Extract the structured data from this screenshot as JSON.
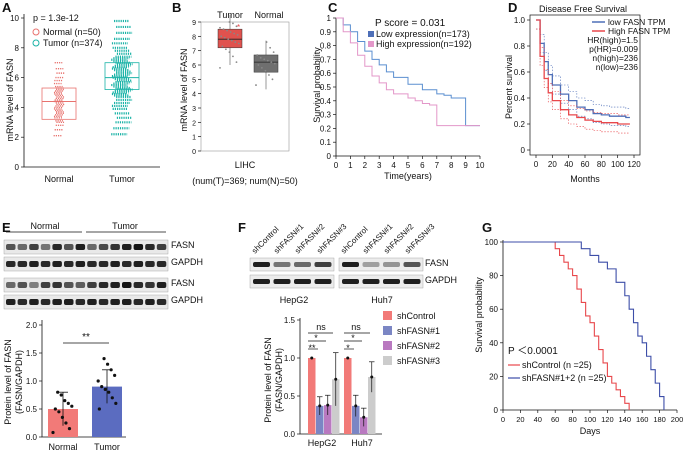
{
  "colors": {
    "normal": "#e8726e",
    "tumor": "#1bb3a7",
    "blue": "#4e6fb8",
    "red": "#e8474b",
    "lightred": "#f27a78",
    "purple": "#9b59a6",
    "grey": "#bdbdbd",
    "boxgrey": "#6f6f6f",
    "boxred": "#e0524e",
    "pink": "#e397c9",
    "lblue": "#5b8fd0"
  },
  "panels": {
    "A": {
      "letter": "A",
      "pvalue": "p = 1.3e-12",
      "legend": [
        {
          "label": "Normal (n=50)"
        },
        {
          "label": "Tumor (n=374)"
        }
      ],
      "ylabel": "mRNA level of FASN",
      "yticks": [
        "0",
        "2",
        "4",
        "6",
        "8",
        "10"
      ],
      "categories": [
        "Normal",
        "Tumor"
      ]
    },
    "B": {
      "letter": "B",
      "groups": [
        "Tumor",
        "Normal"
      ],
      "star": "*",
      "ylabel": "mRNA level of FASN",
      "yticks": [
        "0",
        "1",
        "2",
        "3",
        "4",
        "5",
        "6",
        "7",
        "8",
        "9"
      ],
      "xlabel": "LIHC",
      "subtitle": "(num(T)=369; num(N)=50)"
    },
    "C": {
      "letter": "C",
      "pscore": "P score = 0.031",
      "legend": [
        "Low expression(n=173)",
        "High expression(n=192)"
      ],
      "ylabel": "Survival probability",
      "xlabel": "Time(years)",
      "yticks": [
        "0",
        "0.1",
        "0.2",
        "0.3",
        "0.4",
        "0.5",
        "0.6",
        "0.7",
        "0.8",
        "0.9",
        "1"
      ],
      "xticks": [
        "0",
        "1",
        "2",
        "3",
        "4",
        "5",
        "6",
        "7",
        "8",
        "9",
        "10"
      ]
    },
    "D": {
      "letter": "D",
      "title": "Disease Free Survival",
      "legend": [
        "low FASN TPM",
        "High FASN TPM"
      ],
      "stats": [
        "HR(high)=1.5",
        "p(HR)=0.009",
        "n(high)=236",
        "n(low)=236"
      ],
      "ylabel": "Percent survival",
      "xlabel": "Months",
      "yticks": [
        "0",
        "0.2",
        "0.4",
        "0.6",
        "0.8",
        "1.0"
      ],
      "xticks": [
        "0",
        "20",
        "40",
        "60",
        "80",
        "100",
        "120"
      ]
    },
    "E": {
      "letter": "E",
      "groups": [
        "Normal",
        "Tumor"
      ],
      "blot_labels": [
        "FASN",
        "GAPDH",
        "FASN",
        "GAPDH"
      ],
      "ylabel": "Protein level of FASN",
      "ylabel2": "(FASN/GAPDH)",
      "yticks": [
        "0.0",
        "0.5",
        "1.0",
        "1.5",
        "2.0"
      ],
      "categories": [
        "Normal",
        "Tumor"
      ],
      "sig": "**"
    },
    "F": {
      "letter": "F",
      "lanes": [
        "shControl",
        "shFASN#1",
        "shFASN#2",
        "shFASN#3"
      ],
      "cells": [
        "HepG2",
        "Huh7"
      ],
      "blot_labels": [
        "FASN",
        "GAPDH"
      ],
      "legend": [
        "shControl",
        "shFASN#1",
        "shFASN#2",
        "shFASN#3"
      ],
      "ylabel": "Protein level of FASN",
      "ylabel2": "(FASN/GAPDH)",
      "yticks": [
        "0.0",
        "0.5",
        "1.0",
        "1.5"
      ],
      "sig": {
        "hep_top": "ns",
        "hep_mid": "*",
        "hep_low": "**",
        "huh_top": "ns",
        "huh_mid": "*",
        "huh_low": "*"
      }
    },
    "G": {
      "letter": "G",
      "pvalue": "P ＜0.0001",
      "legend": [
        "shControl (n =25)",
        "shFASN#1+2 (n =25)"
      ],
      "ylabel": "Survival probability",
      "xlabel": "Days",
      "yticks": [
        "0",
        "20",
        "40",
        "60",
        "80",
        "100"
      ],
      "xticks": [
        "0",
        "20",
        "40",
        "60",
        "80",
        "100",
        "120",
        "140",
        "160",
        "180",
        "200"
      ]
    }
  },
  "chart_data": [
    {
      "panel": "A",
      "type": "scatter",
      "title": "",
      "xlabel": "",
      "ylabel": "mRNA level of FASN",
      "ylim": [
        0,
        10
      ],
      "categories": [
        "Normal",
        "Tumor"
      ],
      "box": {
        "Normal": {
          "q1": 3.2,
          "median": 4.4,
          "q3": 5.3
        },
        "Tumor": {
          "q1": 5.2,
          "median": 6.0,
          "q3": 7.0
        }
      },
      "points": {
        "Normal": [
          2.1,
          2.5,
          2.8,
          3.0,
          3.1,
          3.3,
          3.4,
          3.5,
          3.6,
          3.7,
          3.8,
          3.9,
          4.0,
          4.1,
          4.2,
          4.3,
          4.4,
          4.4,
          4.5,
          4.6,
          4.7,
          4.8,
          4.9,
          5.0,
          5.1,
          5.2,
          5.3,
          5.4,
          5.6,
          5.8,
          6.0,
          6.3,
          6.6,
          7.0
        ],
        "Tumor": [
          2.2,
          2.6,
          3.0,
          3.3,
          3.6,
          3.9,
          4.1,
          4.3,
          4.5,
          4.7,
          4.8,
          4.9,
          5.0,
          5.1,
          5.2,
          5.3,
          5.4,
          5.5,
          5.6,
          5.7,
          5.8,
          5.9,
          6.0,
          6.1,
          6.2,
          6.3,
          6.4,
          6.5,
          6.6,
          6.7,
          6.8,
          6.9,
          7.0,
          7.1,
          7.2,
          7.3,
          7.4,
          7.6,
          7.8,
          8.0,
          8.3,
          8.6,
          9.0,
          9.4,
          9.8
        ]
      }
    },
    {
      "panel": "B",
      "type": "scatter",
      "title": "",
      "xlabel": "LIHC",
      "ylabel": "mRNA level of FASN",
      "ylim": [
        0,
        9
      ],
      "categories": [
        "Tumor",
        "Normal"
      ],
      "box": {
        "Tumor": {
          "q1": 7.2,
          "median": 7.8,
          "q3": 8.5
        },
        "Normal": {
          "q1": 5.5,
          "median": 6.2,
          "q3": 6.7
        }
      },
      "points": {
        "Tumor": [
          5.8,
          6.2,
          6.6,
          6.9,
          7.1,
          7.3,
          7.5,
          7.6,
          7.7,
          7.8,
          7.9,
          8.0,
          8.1,
          8.2,
          8.3,
          8.4,
          8.5,
          8.6,
          8.7,
          8.9,
          9.0
        ],
        "Normal": [
          4.6,
          5.0,
          5.3,
          5.6,
          5.8,
          6.0,
          6.1,
          6.2,
          6.3,
          6.4,
          6.5,
          6.7,
          6.9,
          7.2,
          7.6
        ]
      }
    },
    {
      "panel": "C",
      "type": "line",
      "title": "",
      "xlabel": "Time(years)",
      "ylabel": "Survival probability",
      "xlim": [
        0,
        10
      ],
      "ylim": [
        0,
        1
      ],
      "series": [
        {
          "name": "Low expression(n=173)",
          "x": [
            0,
            0.5,
            1,
            1.5,
            2,
            2.5,
            3,
            3.5,
            4,
            5,
            6,
            7,
            7.5,
            8,
            8.5,
            9,
            10
          ],
          "y": [
            1,
            0.95,
            0.9,
            0.83,
            0.76,
            0.7,
            0.66,
            0.61,
            0.57,
            0.52,
            0.48,
            0.45,
            0.44,
            0.42,
            0.42,
            0.22,
            0.22
          ]
        },
        {
          "name": "High expression(n=192)",
          "x": [
            0,
            0.5,
            1,
            1.5,
            2,
            2.5,
            3,
            3.5,
            4,
            5,
            5.5,
            6,
            6.5,
            7,
            8,
            10
          ],
          "y": [
            1,
            0.9,
            0.82,
            0.73,
            0.65,
            0.58,
            0.53,
            0.48,
            0.45,
            0.42,
            0.4,
            0.38,
            0.37,
            0.22,
            0.22,
            0.22
          ]
        }
      ]
    },
    {
      "panel": "D",
      "type": "line",
      "title": "Disease Free Survival",
      "xlabel": "Months",
      "ylabel": "Percent survival",
      "xlim": [
        0,
        120
      ],
      "ylim": [
        0,
        1
      ],
      "series": [
        {
          "name": "low FASN TPM",
          "x": [
            0,
            5,
            10,
            15,
            20,
            30,
            40,
            50,
            60,
            70,
            80,
            90,
            100,
            110,
            115
          ],
          "y": [
            1,
            0.82,
            0.68,
            0.58,
            0.5,
            0.43,
            0.38,
            0.33,
            0.31,
            0.28,
            0.27,
            0.26,
            0.26,
            0.25,
            0.25
          ]
        },
        {
          "name": "High FASN TPM",
          "x": [
            0,
            5,
            10,
            15,
            20,
            30,
            40,
            50,
            60,
            70,
            80,
            90,
            100,
            110,
            115
          ],
          "y": [
            1,
            0.72,
            0.55,
            0.44,
            0.38,
            0.31,
            0.27,
            0.25,
            0.23,
            0.22,
            0.21,
            0.21,
            0.2,
            0.2,
            0.2
          ]
        }
      ]
    },
    {
      "panel": "E",
      "type": "bar",
      "title": "",
      "xlabel": "",
      "ylabel": "Protein level of FASN (FASN/GAPDH)",
      "ylim": [
        0,
        2
      ],
      "categories": [
        "Normal",
        "Tumor"
      ],
      "values": [
        0.5,
        0.9
      ],
      "errors": [
        0.3,
        0.3
      ],
      "points": {
        "Normal": [
          0.08,
          0.15,
          0.25,
          0.35,
          0.45,
          0.5,
          0.55,
          0.6,
          0.65,
          0.75,
          0.8
        ],
        "Tumor": [
          0.5,
          0.6,
          0.7,
          0.8,
          0.85,
          0.9,
          1.0,
          1.1,
          1.2,
          1.3,
          1.4
        ]
      }
    },
    {
      "panel": "F",
      "type": "bar",
      "title": "",
      "xlabel": "",
      "ylabel": "Protein level of FASN (FASN/GAPDH)",
      "ylim": [
        0,
        1.5
      ],
      "categories": [
        "HepG2",
        "Huh7"
      ],
      "series": [
        {
          "name": "shControl",
          "values": [
            1.0,
            1.0
          ],
          "errors": [
            0,
            0
          ]
        },
        {
          "name": "shFASN#1",
          "values": [
            0.37,
            0.37
          ],
          "errors": [
            0.12,
            0.14
          ]
        },
        {
          "name": "shFASN#2",
          "values": [
            0.38,
            0.22
          ],
          "errors": [
            0.13,
            0.12
          ]
        },
        {
          "name": "shFASN#3",
          "values": [
            0.72,
            0.75
          ],
          "errors": [
            0.35,
            0.2
          ]
        }
      ]
    },
    {
      "panel": "G",
      "type": "line",
      "title": "",
      "xlabel": "Days",
      "ylabel": "Survival probability",
      "xlim": [
        0,
        200
      ],
      "ylim": [
        0,
        100
      ],
      "series": [
        {
          "name": "shControl (n =25)",
          "x": [
            0,
            55,
            60,
            65,
            70,
            75,
            80,
            85,
            90,
            95,
            100,
            105,
            110,
            115,
            120,
            125,
            130,
            135,
            140,
            145
          ],
          "y": [
            100,
            100,
            96,
            92,
            88,
            84,
            80,
            72,
            64,
            56,
            52,
            44,
            36,
            28,
            20,
            16,
            12,
            8,
            4,
            0
          ]
        },
        {
          "name": "shFASN#1+2 (n =25)",
          "x": [
            0,
            75,
            90,
            100,
            110,
            120,
            130,
            140,
            145,
            150,
            155,
            160,
            165,
            170,
            175,
            180,
            185
          ],
          "y": [
            100,
            100,
            96,
            92,
            88,
            84,
            76,
            68,
            60,
            52,
            44,
            40,
            32,
            24,
            16,
            8,
            0
          ]
        }
      ]
    }
  ]
}
